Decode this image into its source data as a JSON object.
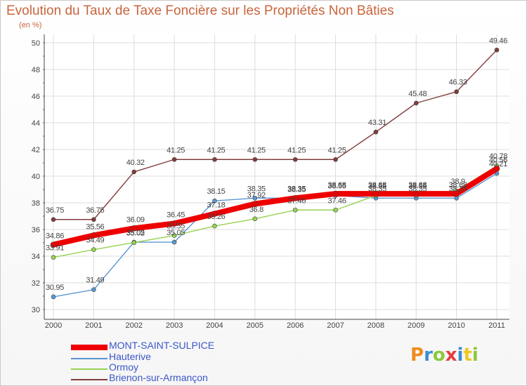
{
  "header": {
    "title": "Evolution du Taux de Taxe Foncière sur les Propriétés Non Bâties",
    "unit": "(en %)"
  },
  "brand": {
    "parts": [
      "P",
      "r",
      "o",
      "x",
      "i",
      "t",
      "i"
    ],
    "colors": [
      "#f08c1e",
      "#3c8cd2",
      "#8cc83c",
      "#e63c3c",
      "#3c8cd2",
      "#f0c81e",
      "#8cc83c"
    ]
  },
  "chart_data": {
    "type": "line",
    "title": "Evolution du Taux de Taxe Foncière sur les Propriétés Non Bâties",
    "ylabel": "(en %)",
    "xlabel": "",
    "x": [
      "2000",
      "2001",
      "2002",
      "2003",
      "2004",
      "2005",
      "2006",
      "2007",
      "2008",
      "2009",
      "2010",
      "2011"
    ],
    "ylim": [
      30,
      50
    ],
    "yticks": [
      "30",
      "32",
      "34",
      "36",
      "38",
      "40",
      "42",
      "44",
      "46",
      "48",
      "50"
    ],
    "grid": true,
    "legend_position": "bottom",
    "series": [
      {
        "name": "MONT-SAINT-SULPICE",
        "color": "#ee0000",
        "values": [
          34.86,
          35.56,
          36.09,
          36.45,
          37.18,
          37.92,
          38.35,
          38.68,
          38.68,
          38.68,
          38.68,
          40.56
        ],
        "labels": [
          "34.86",
          "35.56",
          "36.09",
          "36.45",
          "37.18",
          "37.92",
          "38.35",
          "38.68",
          "38.68",
          "38.68",
          "38.68",
          "40.56"
        ]
      },
      {
        "name": "Hauterive",
        "color": "#5a96d2",
        "values": [
          30.95,
          31.49,
          35.05,
          35.05,
          38.15,
          38.35,
          38.35,
          38.55,
          38.35,
          38.35,
          38.35,
          40.21
        ],
        "labels": [
          "30.95",
          "31.49",
          "35.05",
          "35.05",
          "38.15",
          "38.35",
          "38.35",
          "38.55",
          "38.35",
          "38.35",
          "38.35",
          "40.21"
        ]
      },
      {
        "name": "Ormoy",
        "color": "#96d250",
        "values": [
          33.91,
          34.49,
          35.02,
          35.55,
          36.26,
          36.8,
          37.46,
          37.46,
          38.55,
          38.55,
          38.9,
          40.78
        ],
        "labels": [
          "33.91",
          "34.49",
          "35.02",
          "35.55",
          "36.26",
          "36.8",
          "37.46",
          "37.46",
          "38.55",
          "38.55",
          "38.9",
          "40.78"
        ]
      },
      {
        "name": "Brienon-sur-Armançon",
        "color": "#823c3c",
        "values": [
          36.75,
          36.75,
          40.32,
          41.25,
          41.25,
          41.25,
          41.25,
          41.25,
          43.31,
          45.48,
          46.33,
          49.46
        ],
        "labels": [
          "36.75",
          "36.75",
          "40.32",
          "41.25",
          "41.25",
          "41.25",
          "41.25",
          "41.25",
          "43.31",
          "45.48",
          "46.33",
          "49.46"
        ]
      }
    ]
  }
}
